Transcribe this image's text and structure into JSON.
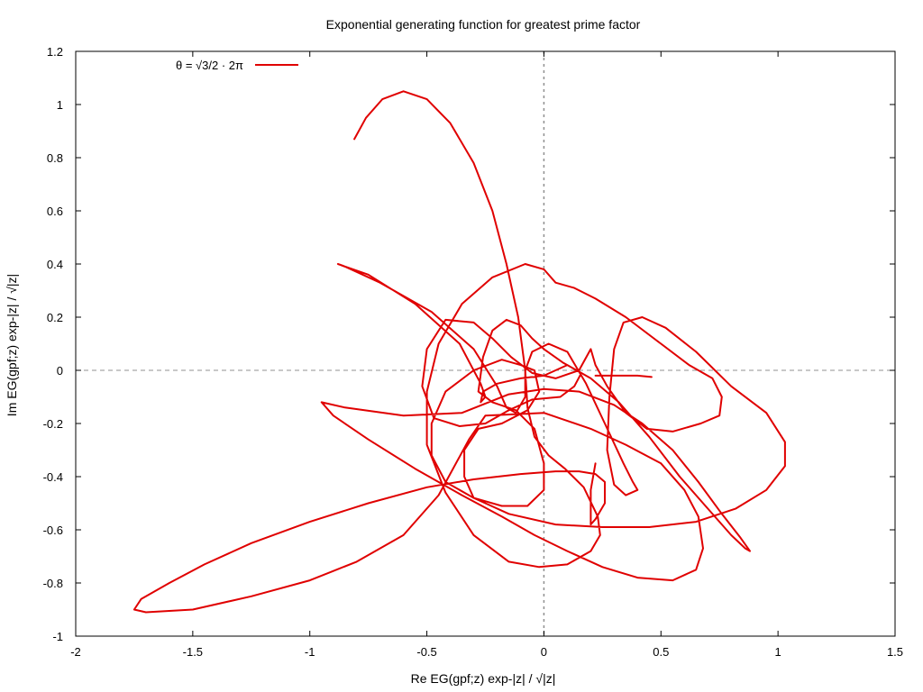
{
  "chart_data": {
    "type": "line",
    "title": "Exponential generating function for greatest prime factor",
    "xlabel": "Re EG(gpf;z) exp-|z| / √|z|",
    "ylabel": "Im EG(gpf;z) exp-|z| / √|z|",
    "xlim": [
      -2,
      1.5
    ],
    "ylim": [
      -1,
      1.2
    ],
    "xticks": [
      -2,
      -1.5,
      -1,
      -0.5,
      0,
      0.5,
      1,
      1.5
    ],
    "xtick_labels": [
      "-2",
      "-1.5",
      "-1",
      "-0.5",
      "0",
      "0.5",
      "1",
      "1.5"
    ],
    "yticks": [
      -1,
      -0.8,
      -0.6,
      -0.4,
      -0.2,
      0,
      0.2,
      0.4,
      0.6,
      0.8,
      1,
      1.2
    ],
    "ytick_labels": [
      "-1",
      "-0.8",
      "-0.6",
      "-0.4",
      "-0.2",
      "0",
      "0.2",
      "0.4",
      "0.6",
      "0.8",
      "1",
      "1.2"
    ],
    "grid": false,
    "zero_lines": true,
    "legend_position": "top-left",
    "series": [
      {
        "name": "θ = √3/2 · 2π",
        "color": "#e00000",
        "points": [
          [
            -0.81,
            0.87
          ],
          [
            -0.76,
            0.95
          ],
          [
            -0.69,
            1.02
          ],
          [
            -0.6,
            1.05
          ],
          [
            -0.5,
            1.02
          ],
          [
            -0.4,
            0.93
          ],
          [
            -0.3,
            0.78
          ],
          [
            -0.22,
            0.6
          ],
          [
            -0.16,
            0.4
          ],
          [
            -0.11,
            0.2
          ],
          [
            -0.08,
            0.0
          ],
          [
            -0.07,
            -0.14
          ],
          [
            -0.04,
            -0.25
          ],
          [
            0.02,
            -0.32
          ],
          [
            0.09,
            -0.37
          ],
          [
            0.17,
            -0.44
          ],
          [
            0.23,
            -0.55
          ],
          [
            0.24,
            -0.62
          ],
          [
            0.2,
            -0.68
          ],
          [
            0.1,
            -0.73
          ],
          [
            -0.02,
            -0.74
          ],
          [
            -0.15,
            -0.72
          ],
          [
            -0.3,
            -0.62
          ],
          [
            -0.42,
            -0.46
          ],
          [
            -0.5,
            -0.28
          ],
          [
            -0.5,
            -0.08
          ],
          [
            -0.45,
            0.1
          ],
          [
            -0.35,
            0.25
          ],
          [
            -0.22,
            0.35
          ],
          [
            -0.08,
            0.4
          ],
          [
            0.0,
            0.38
          ],
          [
            0.05,
            0.33
          ],
          [
            0.13,
            0.31
          ],
          [
            0.22,
            0.27
          ],
          [
            0.35,
            0.2
          ],
          [
            0.5,
            0.1
          ],
          [
            0.62,
            0.02
          ],
          [
            0.72,
            -0.03
          ],
          [
            0.76,
            -0.1
          ],
          [
            0.75,
            -0.17
          ],
          [
            0.67,
            -0.2
          ],
          [
            0.55,
            -0.23
          ],
          [
            0.44,
            -0.22
          ],
          [
            0.35,
            -0.16
          ],
          [
            0.27,
            -0.06
          ],
          [
            0.22,
            0.02
          ],
          [
            0.2,
            0.08
          ],
          [
            0.15,
            0.0
          ],
          [
            0.05,
            -0.03
          ],
          [
            -0.05,
            -0.01
          ],
          [
            -0.14,
            0.05
          ],
          [
            -0.22,
            0.12
          ],
          [
            -0.3,
            0.18
          ],
          [
            -0.42,
            0.19
          ],
          [
            -0.5,
            0.08
          ],
          [
            -0.52,
            -0.06
          ],
          [
            -0.47,
            -0.18
          ],
          [
            -0.36,
            -0.21
          ],
          [
            -0.25,
            -0.2
          ],
          [
            -0.15,
            -0.15
          ],
          [
            -0.05,
            -0.11
          ],
          [
            0.07,
            -0.1
          ],
          [
            0.13,
            -0.06
          ],
          [
            0.16,
            -0.01
          ],
          [
            0.1,
            0.02
          ],
          [
            0.0,
            -0.02
          ],
          [
            -0.1,
            -0.03
          ],
          [
            -0.2,
            -0.05
          ],
          [
            -0.26,
            -0.08
          ],
          [
            -0.27,
            -0.12
          ],
          [
            -0.25,
            -0.1
          ],
          [
            -0.27,
            -0.05
          ],
          [
            -0.36,
            0.1
          ],
          [
            -0.55,
            0.25
          ],
          [
            -0.75,
            0.36
          ],
          [
            -0.88,
            0.4
          ],
          [
            -0.85,
            0.39
          ],
          [
            -0.7,
            0.33
          ],
          [
            -0.48,
            0.22
          ],
          [
            -0.3,
            0.08
          ],
          [
            -0.2,
            -0.06
          ],
          [
            -0.16,
            -0.14
          ],
          [
            -0.12,
            -0.16
          ],
          [
            -0.08,
            -0.1
          ],
          [
            -0.08,
            0.0
          ],
          [
            -0.05,
            0.07
          ],
          [
            0.02,
            0.1
          ],
          [
            0.1,
            0.07
          ],
          [
            0.18,
            -0.05
          ],
          [
            0.26,
            -0.2
          ],
          [
            0.34,
            -0.35
          ],
          [
            0.38,
            -0.42
          ],
          [
            0.4,
            -0.45
          ],
          [
            0.35,
            -0.47
          ],
          [
            0.3,
            -0.43
          ],
          [
            0.27,
            -0.3
          ],
          [
            0.28,
            -0.1
          ],
          [
            0.3,
            0.08
          ],
          [
            0.34,
            0.18
          ],
          [
            0.42,
            0.2
          ],
          [
            0.52,
            0.16
          ],
          [
            0.65,
            0.07
          ],
          [
            0.8,
            -0.06
          ],
          [
            0.95,
            -0.16
          ],
          [
            1.03,
            -0.27
          ],
          [
            1.03,
            -0.36
          ],
          [
            0.95,
            -0.45
          ],
          [
            0.82,
            -0.52
          ],
          [
            0.65,
            -0.57
          ],
          [
            0.45,
            -0.59
          ],
          [
            0.25,
            -0.59
          ],
          [
            0.05,
            -0.58
          ],
          [
            -0.15,
            -0.54
          ],
          [
            -0.3,
            -0.48
          ],
          [
            -0.34,
            -0.4
          ],
          [
            -0.34,
            -0.3
          ],
          [
            -0.28,
            -0.22
          ],
          [
            -0.18,
            -0.2
          ],
          [
            -0.07,
            -0.15
          ],
          [
            -0.02,
            -0.08
          ],
          [
            -0.04,
            0.0
          ],
          [
            -0.1,
            0.02
          ],
          [
            -0.18,
            0.04
          ],
          [
            -0.3,
            0.0
          ],
          [
            -0.42,
            -0.08
          ],
          [
            -0.48,
            -0.2
          ],
          [
            -0.48,
            -0.32
          ],
          [
            -0.42,
            -0.42
          ],
          [
            -0.3,
            -0.48
          ],
          [
            -0.18,
            -0.51
          ],
          [
            -0.07,
            -0.51
          ],
          [
            0.0,
            -0.45
          ],
          [
            0.0,
            -0.35
          ],
          [
            -0.04,
            -0.22
          ],
          [
            -0.12,
            -0.15
          ],
          [
            -0.22,
            -0.12
          ],
          [
            -0.28,
            -0.08
          ],
          [
            -0.26,
            0.05
          ],
          [
            -0.22,
            0.15
          ],
          [
            -0.16,
            0.19
          ],
          [
            -0.1,
            0.17
          ],
          [
            -0.05,
            0.12
          ],
          [
            0.0,
            0.08
          ],
          [
            0.08,
            0.03
          ],
          [
            0.2,
            -0.03
          ],
          [
            0.32,
            -0.12
          ],
          [
            0.45,
            -0.25
          ],
          [
            0.58,
            -0.4
          ],
          [
            0.7,
            -0.52
          ],
          [
            0.8,
            -0.62
          ],
          [
            0.86,
            -0.67
          ],
          [
            0.88,
            -0.68
          ],
          [
            0.84,
            -0.63
          ],
          [
            0.76,
            -0.54
          ],
          [
            0.66,
            -0.42
          ],
          [
            0.55,
            -0.3
          ],
          [
            0.42,
            -0.2
          ],
          [
            0.3,
            -0.13
          ],
          [
            0.15,
            -0.08
          ],
          [
            0.0,
            -0.07
          ],
          [
            -0.15,
            -0.09
          ],
          [
            -0.35,
            -0.16
          ],
          [
            -0.6,
            -0.17
          ],
          [
            -0.85,
            -0.14
          ],
          [
            -0.95,
            -0.12
          ],
          [
            -0.9,
            -0.17
          ],
          [
            -0.75,
            -0.26
          ],
          [
            -0.55,
            -0.37
          ],
          [
            -0.35,
            -0.47
          ],
          [
            -0.18,
            -0.55
          ],
          [
            -0.04,
            -0.62
          ],
          [
            0.1,
            -0.68
          ],
          [
            0.25,
            -0.74
          ],
          [
            0.4,
            -0.78
          ],
          [
            0.55,
            -0.79
          ],
          [
            0.65,
            -0.75
          ],
          [
            0.68,
            -0.67
          ],
          [
            0.66,
            -0.55
          ],
          [
            0.6,
            -0.45
          ],
          [
            0.5,
            -0.35
          ],
          [
            0.35,
            -0.28
          ],
          [
            0.2,
            -0.22
          ],
          [
            0.0,
            -0.16
          ],
          [
            -0.25,
            -0.17
          ],
          [
            -0.32,
            -0.26
          ],
          [
            -0.45,
            -0.47
          ],
          [
            -0.6,
            -0.62
          ],
          [
            -0.8,
            -0.72
          ],
          [
            -1.0,
            -0.79
          ],
          [
            -1.25,
            -0.85
          ],
          [
            -1.5,
            -0.9
          ],
          [
            -1.7,
            -0.91
          ],
          [
            -1.75,
            -0.9
          ],
          [
            -1.72,
            -0.86
          ],
          [
            -1.6,
            -0.8
          ],
          [
            -1.45,
            -0.73
          ],
          [
            -1.25,
            -0.65
          ],
          [
            -1.0,
            -0.57
          ],
          [
            -0.75,
            -0.5
          ],
          [
            -0.5,
            -0.44
          ],
          [
            -0.3,
            -0.41
          ],
          [
            -0.1,
            -0.39
          ],
          [
            0.05,
            -0.38
          ],
          [
            0.15,
            -0.38
          ],
          [
            0.22,
            -0.39
          ],
          [
            0.26,
            -0.42
          ],
          [
            0.26,
            -0.5
          ],
          [
            0.22,
            -0.56
          ],
          [
            0.2,
            -0.58
          ],
          [
            0.2,
            -0.45
          ],
          [
            0.22,
            -0.35
          ]
        ]
      },
      {
        "name": "",
        "color": "#e00000",
        "points": [
          [
            0.22,
            -0.02
          ],
          [
            0.32,
            -0.02
          ],
          [
            0.4,
            -0.02
          ],
          [
            0.46,
            -0.025
          ]
        ]
      }
    ]
  }
}
